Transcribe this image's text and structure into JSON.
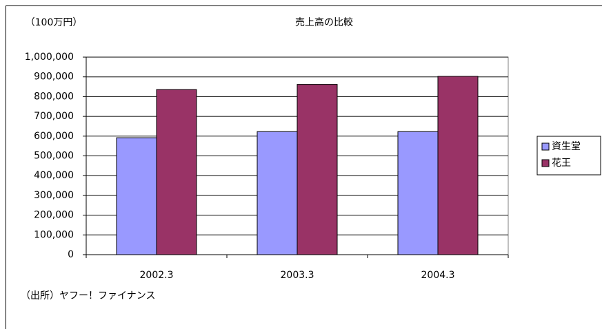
{
  "chart_data": {
    "type": "bar",
    "title": "売上高の比較",
    "unit_note": "（100万円）",
    "source_note": "（出所）ヤフー！ファイナンス",
    "categories": [
      "2002.3",
      "2003.3",
      "2004.3"
    ],
    "series": [
      {
        "name": "資生堂",
        "color": "#9999ff",
        "values": [
          592000,
          623000,
          623000
        ]
      },
      {
        "name": "花王",
        "color": "#993366",
        "values": [
          836000,
          862000,
          903000
        ]
      }
    ],
    "ylim": [
      0,
      1000000
    ],
    "yticks": [
      0,
      {
        "value": 100000,
        "label": "100,000"
      },
      {
        "value": 200000,
        "label": "200,000"
      },
      {
        "value": 300000,
        "label": "300,000"
      },
      {
        "value": 400000,
        "label": "400,000"
      },
      {
        "value": 500000,
        "label": "500,000"
      },
      {
        "value": 600000,
        "label": "600,000"
      },
      {
        "value": 700000,
        "label": "700,000"
      },
      {
        "value": 800000,
        "label": "800,000"
      },
      {
        "value": 900000,
        "label": "900,000"
      },
      {
        "value": 1000000,
        "label": "1,000,000"
      }
    ],
    "grid": true,
    "legend": "right"
  }
}
